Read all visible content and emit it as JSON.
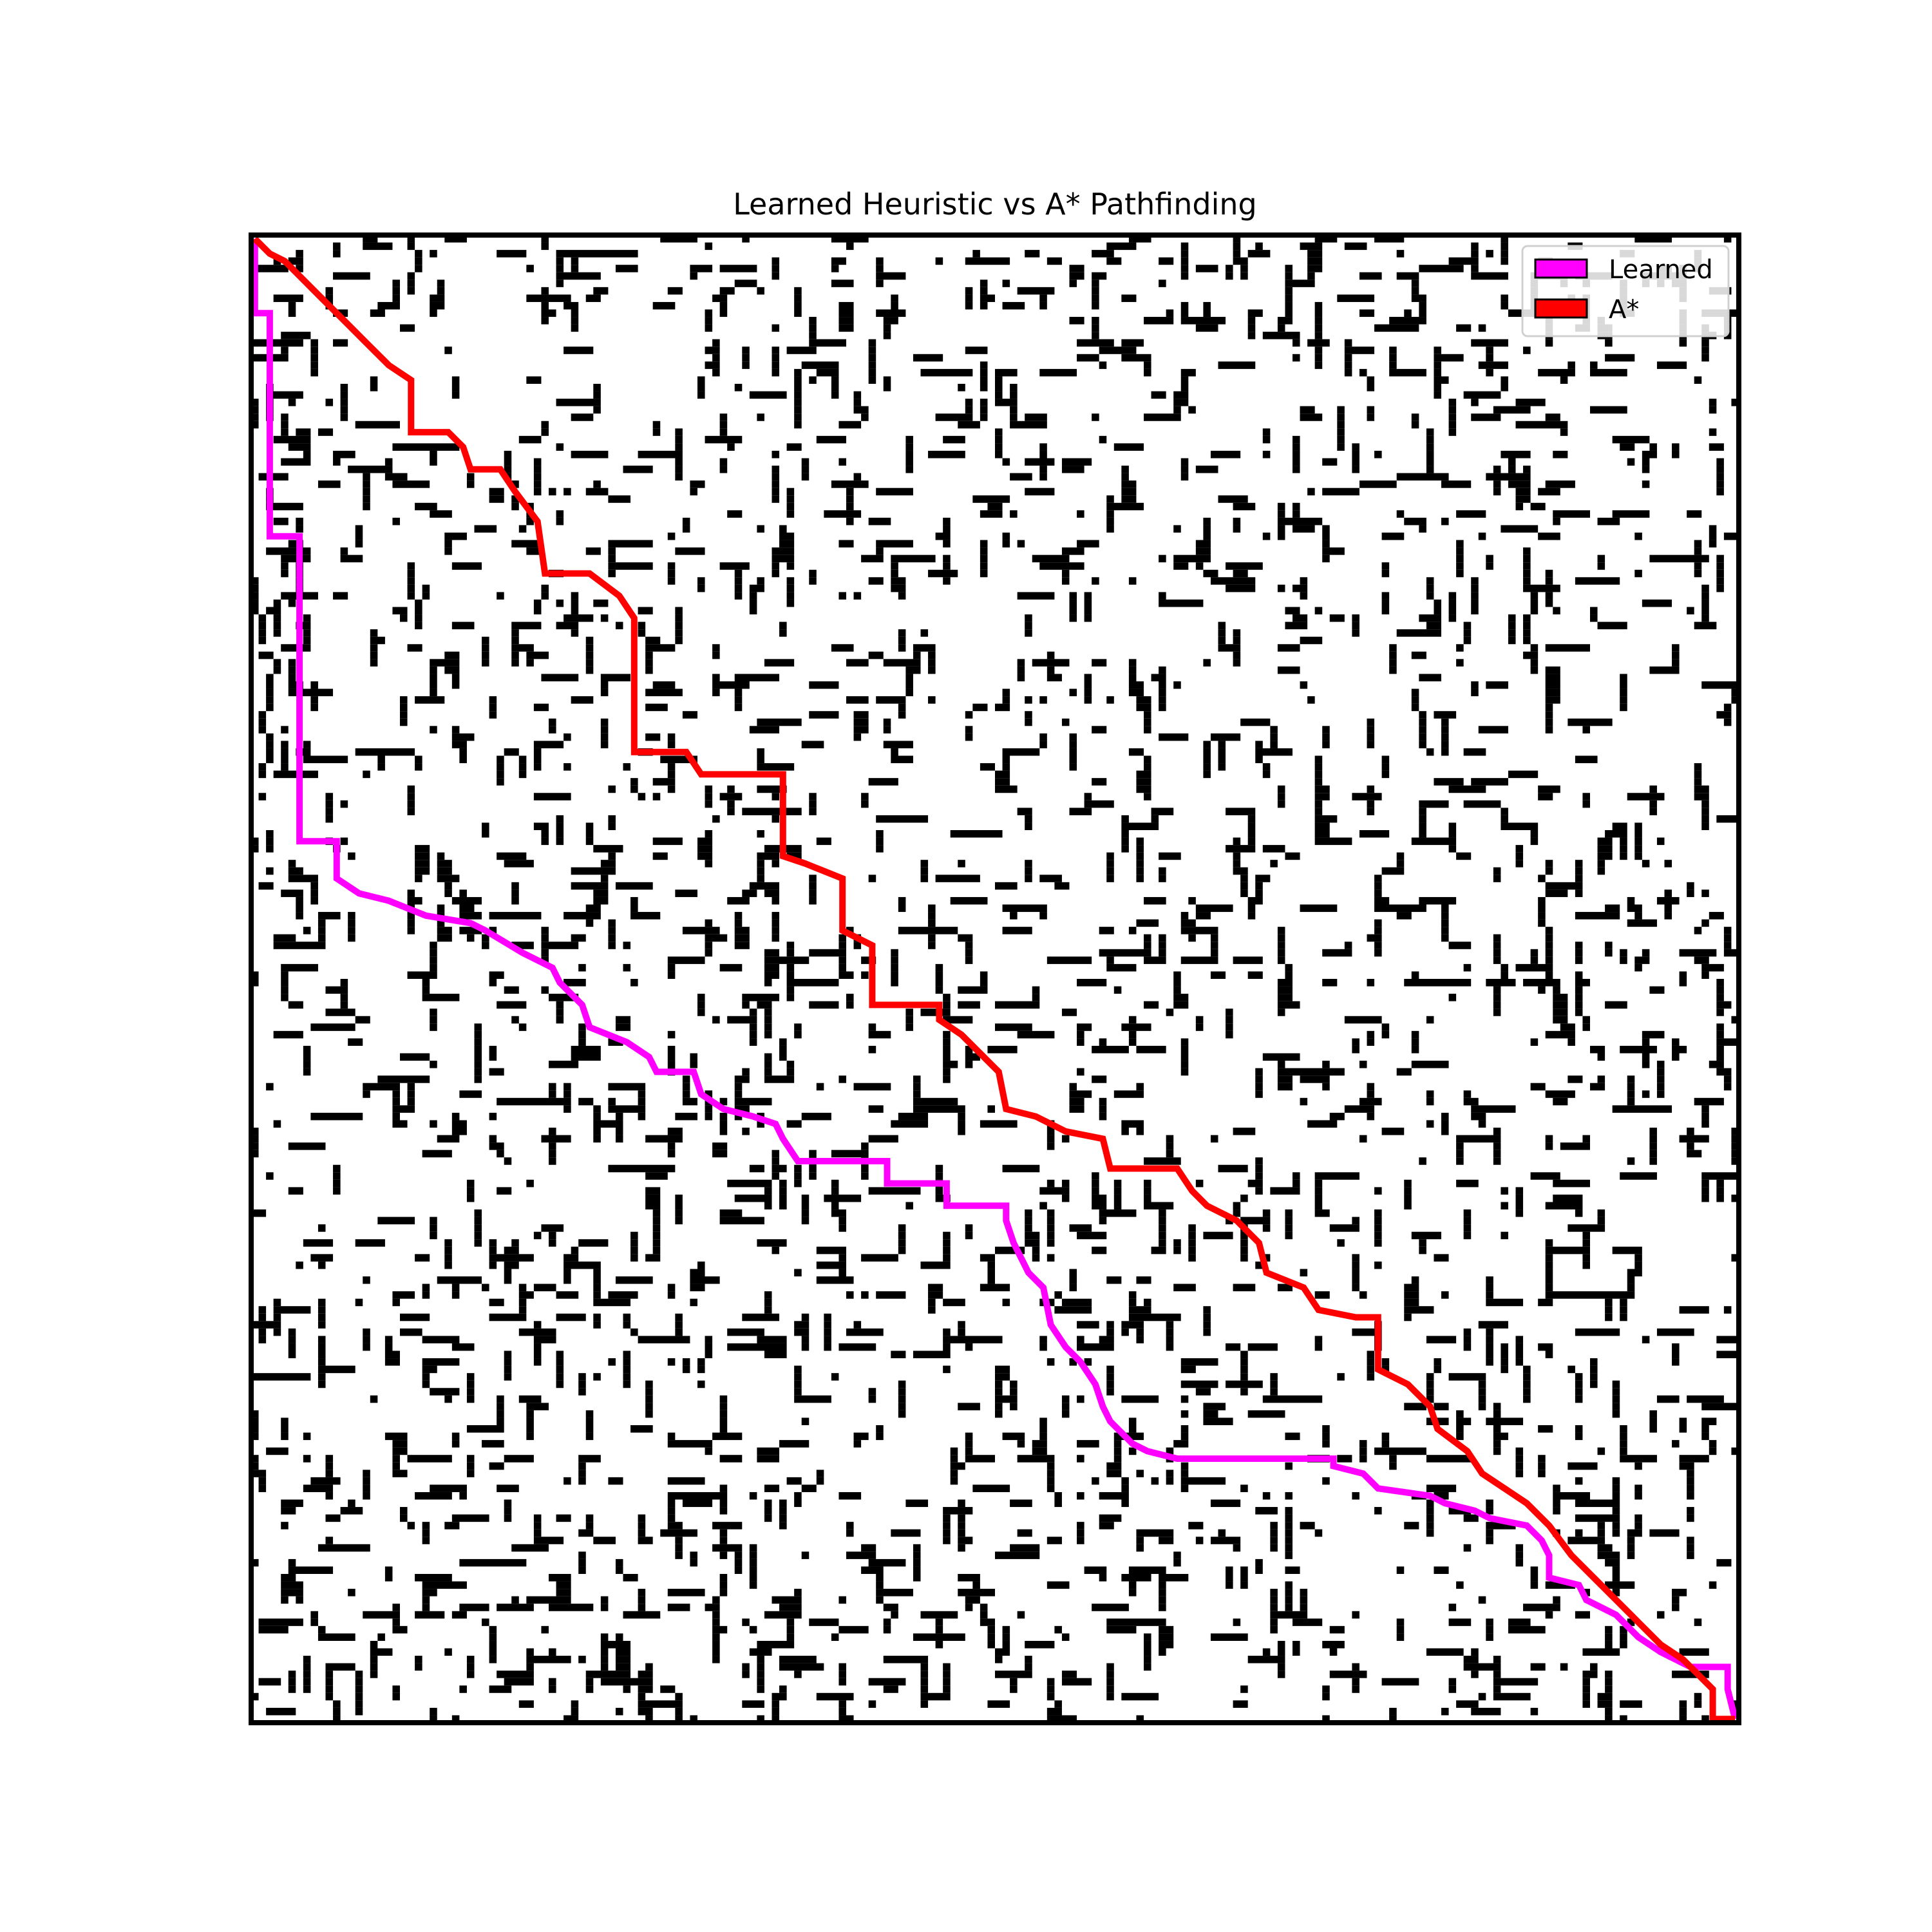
{
  "chart_data": {
    "type": "heatmap",
    "title": "Learned Heuristic vs A* Pathfinding",
    "xlabel": "",
    "ylabel": "",
    "axis_ticks": false,
    "grid": false,
    "legend_position": "top-right",
    "grid_size": [
      200,
      200
    ],
    "obstacle_density_approx": 0.2,
    "obstacle_color": "#000000",
    "free_color": "#ffffff",
    "series": [
      {
        "name": "Learned",
        "color": "#ff00ff",
        "path": [
          [
            0,
            0
          ],
          [
            0,
            10
          ],
          [
            2,
            10
          ],
          [
            2,
            40
          ],
          [
            6,
            40
          ],
          [
            6,
            81
          ],
          [
            11,
            81
          ],
          [
            11,
            86
          ],
          [
            14,
            88
          ],
          [
            18,
            89
          ],
          [
            23,
            91
          ],
          [
            29,
            92
          ],
          [
            31,
            93
          ],
          [
            36,
            96
          ],
          [
            40,
            98
          ],
          [
            41,
            100
          ],
          [
            44,
            103
          ],
          [
            45,
            106
          ],
          [
            50,
            108
          ],
          [
            53,
            110
          ],
          [
            54,
            112
          ],
          [
            59,
            112
          ],
          [
            60,
            115
          ],
          [
            63,
            117
          ],
          [
            67,
            118
          ],
          [
            70,
            119
          ],
          [
            71,
            121
          ],
          [
            73,
            124
          ],
          [
            85,
            124
          ],
          [
            85,
            127
          ],
          [
            93,
            127
          ],
          [
            93,
            130
          ],
          [
            101,
            130
          ],
          [
            101,
            132
          ],
          [
            102,
            135
          ],
          [
            104,
            139
          ],
          [
            106,
            141
          ],
          [
            107,
            146
          ],
          [
            109,
            149
          ],
          [
            111,
            151
          ],
          [
            113,
            154
          ],
          [
            114,
            157
          ],
          [
            115,
            159
          ],
          [
            118,
            162
          ],
          [
            120,
            163
          ],
          [
            124,
            164
          ],
          [
            145,
            164
          ],
          [
            145,
            165
          ],
          [
            149,
            166
          ],
          [
            151,
            168
          ],
          [
            158,
            169
          ],
          [
            160,
            170
          ],
          [
            164,
            171
          ],
          [
            166,
            172
          ],
          [
            171,
            173
          ],
          [
            173,
            175
          ],
          [
            174,
            177
          ],
          [
            174,
            180
          ],
          [
            178,
            181
          ],
          [
            179,
            183
          ],
          [
            183,
            185
          ],
          [
            186,
            188
          ],
          [
            189,
            190
          ],
          [
            193,
            192
          ],
          [
            198,
            192
          ],
          [
            198,
            195
          ],
          [
            199,
            199
          ]
        ]
      },
      {
        "name": "A*",
        "color": "#ff0000",
        "path": [
          [
            0,
            0
          ],
          [
            2,
            2
          ],
          [
            4,
            3
          ],
          [
            6,
            5
          ],
          [
            9,
            8
          ],
          [
            12,
            11
          ],
          [
            15,
            14
          ],
          [
            18,
            17
          ],
          [
            21,
            19
          ],
          [
            21,
            26
          ],
          [
            26,
            26
          ],
          [
            28,
            28
          ],
          [
            29,
            31
          ],
          [
            33,
            31
          ],
          [
            35,
            34
          ],
          [
            38,
            38
          ],
          [
            39,
            45
          ],
          [
            45,
            45
          ],
          [
            49,
            48
          ],
          [
            51,
            51
          ],
          [
            51,
            69
          ],
          [
            58,
            69
          ],
          [
            60,
            72
          ],
          [
            71,
            72
          ],
          [
            71,
            83
          ],
          [
            74,
            84
          ],
          [
            79,
            86
          ],
          [
            79,
            93
          ],
          [
            83,
            95
          ],
          [
            83,
            103
          ],
          [
            92,
            103
          ],
          [
            92,
            105
          ],
          [
            95,
            107
          ],
          [
            98,
            110
          ],
          [
            100,
            112
          ],
          [
            101,
            117
          ],
          [
            105,
            118
          ],
          [
            109,
            120
          ],
          [
            114,
            121
          ],
          [
            115,
            125
          ],
          [
            124,
            125
          ],
          [
            126,
            128
          ],
          [
            128,
            130
          ],
          [
            132,
            132
          ],
          [
            135,
            135
          ],
          [
            136,
            139
          ],
          [
            141,
            141
          ],
          [
            143,
            144
          ],
          [
            148,
            145
          ],
          [
            151,
            145
          ],
          [
            151,
            152
          ],
          [
            155,
            154
          ],
          [
            158,
            157
          ],
          [
            159,
            160
          ],
          [
            163,
            163
          ],
          [
            165,
            166
          ],
          [
            168,
            168
          ],
          [
            171,
            170
          ],
          [
            174,
            173
          ],
          [
            177,
            177
          ],
          [
            180,
            180
          ],
          [
            183,
            183
          ],
          [
            186,
            186
          ],
          [
            189,
            189
          ],
          [
            192,
            191
          ],
          [
            196,
            195
          ],
          [
            196,
            199
          ],
          [
            199,
            199
          ]
        ]
      }
    ]
  },
  "legend": {
    "items": [
      {
        "label": "Learned",
        "color": "#ff00ff"
      },
      {
        "label": "A*",
        "color": "#ff0000"
      }
    ]
  }
}
